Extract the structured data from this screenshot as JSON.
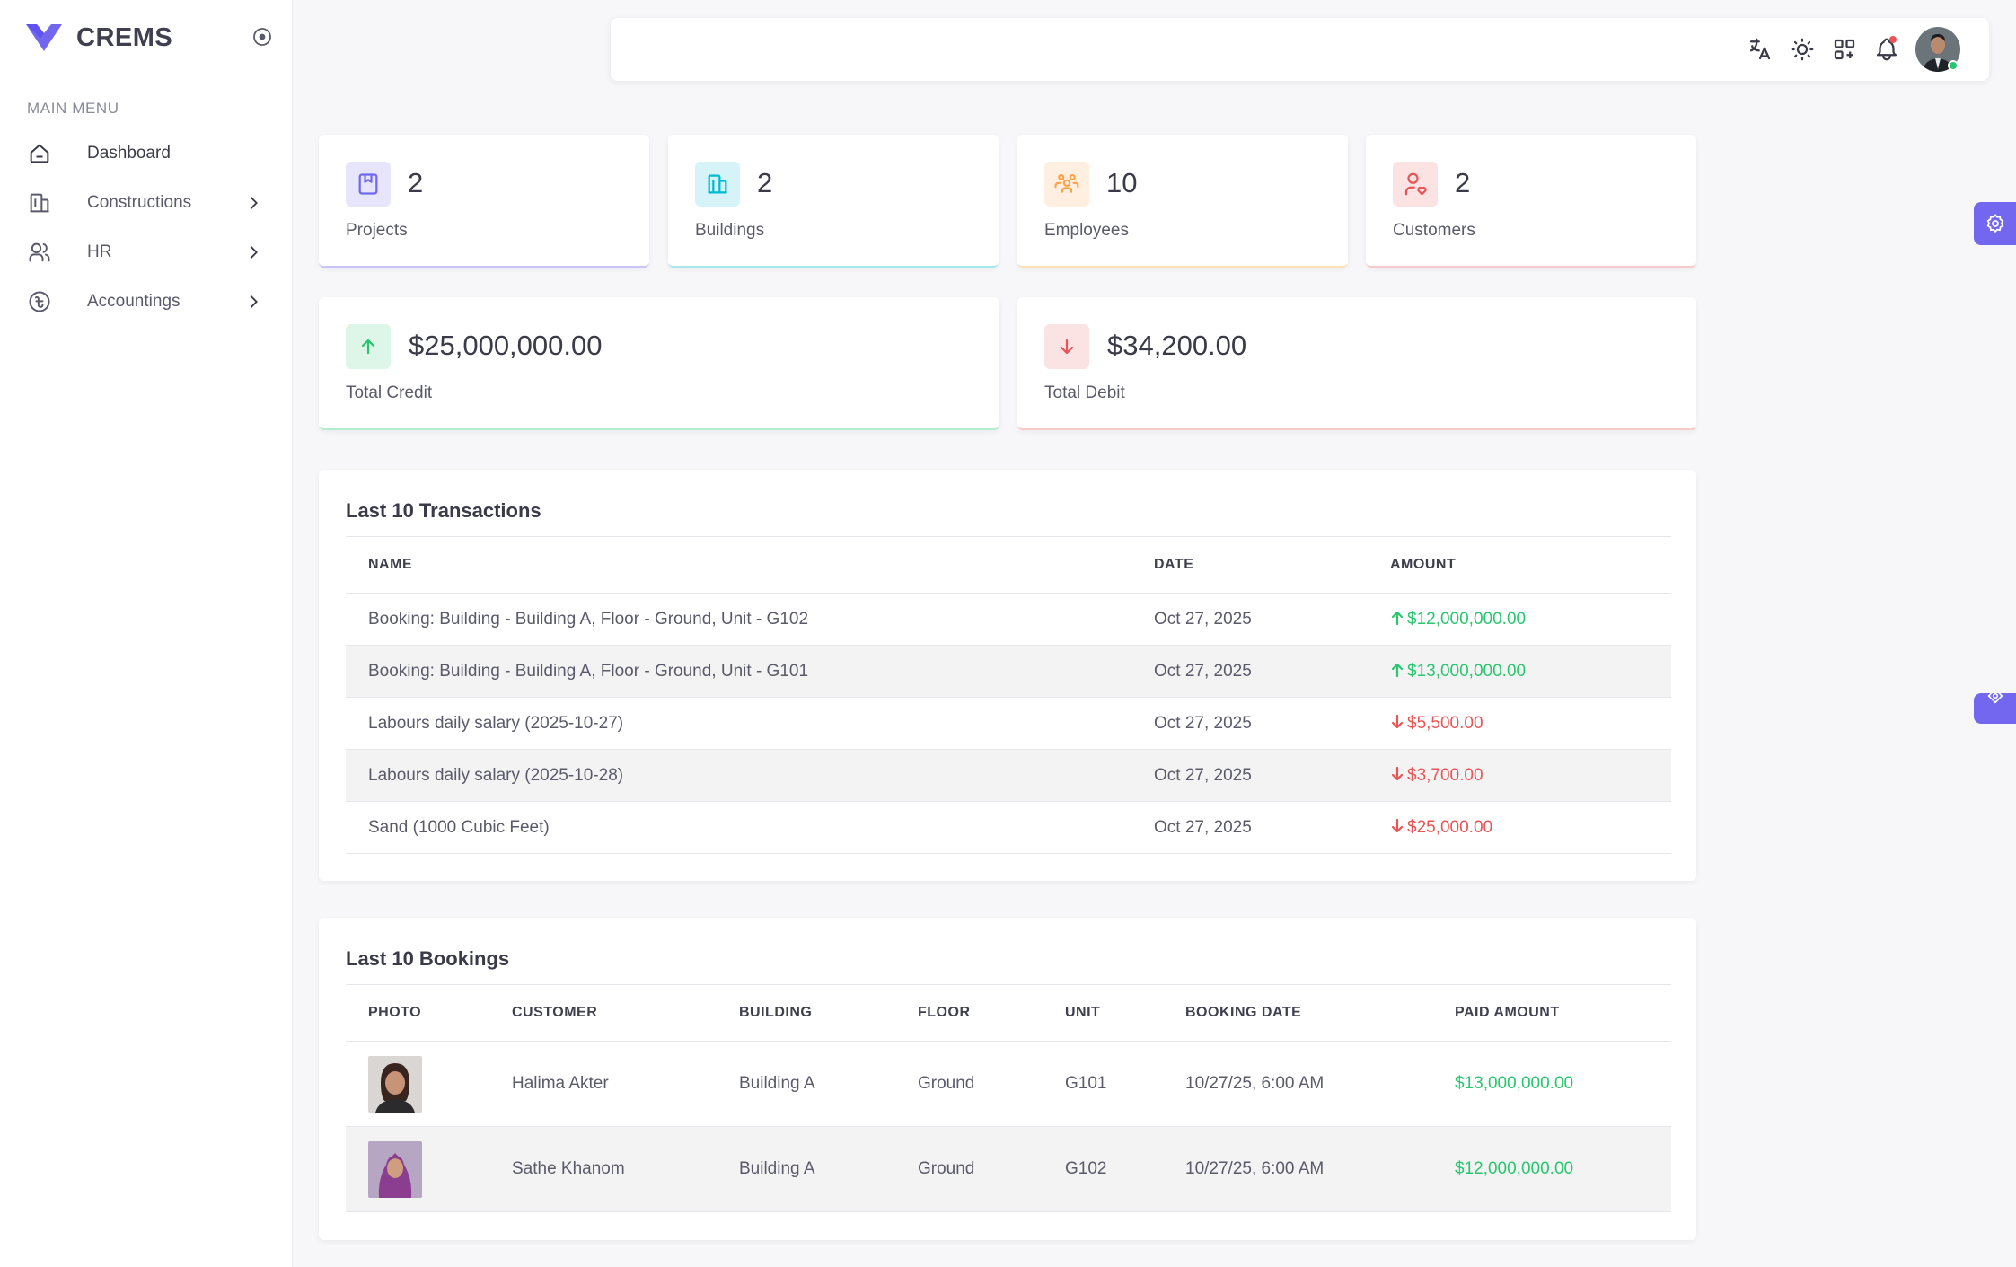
{
  "brand": {
    "name": "CREMS",
    "accent": "#7367f0"
  },
  "sidebar": {
    "menu_header": "MAIN MENU",
    "items": [
      {
        "label": "Dashboard",
        "icon": "home-icon",
        "active": true
      },
      {
        "label": "Constructions",
        "icon": "building-icon",
        "has_children": true
      },
      {
        "label": "HR",
        "icon": "users-icon",
        "has_children": true
      },
      {
        "label": "Accountings",
        "icon": "taka-coin-icon",
        "has_children": true
      }
    ]
  },
  "topbar": {
    "icons": [
      "translate-icon",
      "sun-icon",
      "apps-icon",
      "bell-icon"
    ],
    "notification": true,
    "user_status": "online"
  },
  "stats": [
    {
      "value": "2",
      "label": "Projects",
      "icon": "bookmark-icon",
      "color": "#7367f0"
    },
    {
      "value": "2",
      "label": "Buildings",
      "icon": "building-icon",
      "color": "#00bad1"
    },
    {
      "value": "10",
      "label": "Employees",
      "icon": "users-group-icon",
      "color": "#ff9f43"
    },
    {
      "value": "2",
      "label": "Customers",
      "icon": "user-heart-icon",
      "color": "#ea5455"
    }
  ],
  "totals": [
    {
      "value": "$25,000,000.00",
      "label": "Total Credit",
      "direction": "up",
      "color": "#28c76f"
    },
    {
      "value": "$34,200.00",
      "label": "Total Debit",
      "direction": "down",
      "color": "#ea5455"
    }
  ],
  "transactions": {
    "title": "Last 10 Transactions",
    "columns": [
      "NAME",
      "DATE",
      "AMOUNT"
    ],
    "rows": [
      {
        "name": "Booking: Building - Building A, Floor - Ground, Unit - G102",
        "date": "Oct 27, 2025",
        "amount": "$12,000,000.00",
        "direction": "up"
      },
      {
        "name": "Booking: Building - Building A, Floor - Ground, Unit - G101",
        "date": "Oct 27, 2025",
        "amount": "$13,000,000.00",
        "direction": "up"
      },
      {
        "name": "Labours daily salary (2025-10-27)",
        "date": "Oct 27, 2025",
        "amount": "$5,500.00",
        "direction": "down"
      },
      {
        "name": "Labours daily salary (2025-10-28)",
        "date": "Oct 27, 2025",
        "amount": "$3,700.00",
        "direction": "down"
      },
      {
        "name": "Sand (1000 Cubic Feet)",
        "date": "Oct 27, 2025",
        "amount": "$25,000.00",
        "direction": "down"
      }
    ]
  },
  "bookings": {
    "title": "Last 10 Bookings",
    "columns": [
      "PHOTO",
      "CUSTOMER",
      "BUILDING",
      "FLOOR",
      "UNIT",
      "BOOKING DATE",
      "PAID AMOUNT"
    ],
    "rows": [
      {
        "customer": "Halima Akter",
        "building": "Building A",
        "floor": "Ground",
        "unit": "G101",
        "booking_date": "10/27/25, 6:00 AM",
        "paid_amount": "$13,000,000.00"
      },
      {
        "customer": "Sathe Khanom",
        "building": "Building A",
        "floor": "Ground",
        "unit": "G102",
        "booking_date": "10/27/25, 6:00 AM",
        "paid_amount": "$12,000,000.00"
      }
    ]
  },
  "side_tabs": [
    "settings-icon",
    "customizer-icon"
  ]
}
